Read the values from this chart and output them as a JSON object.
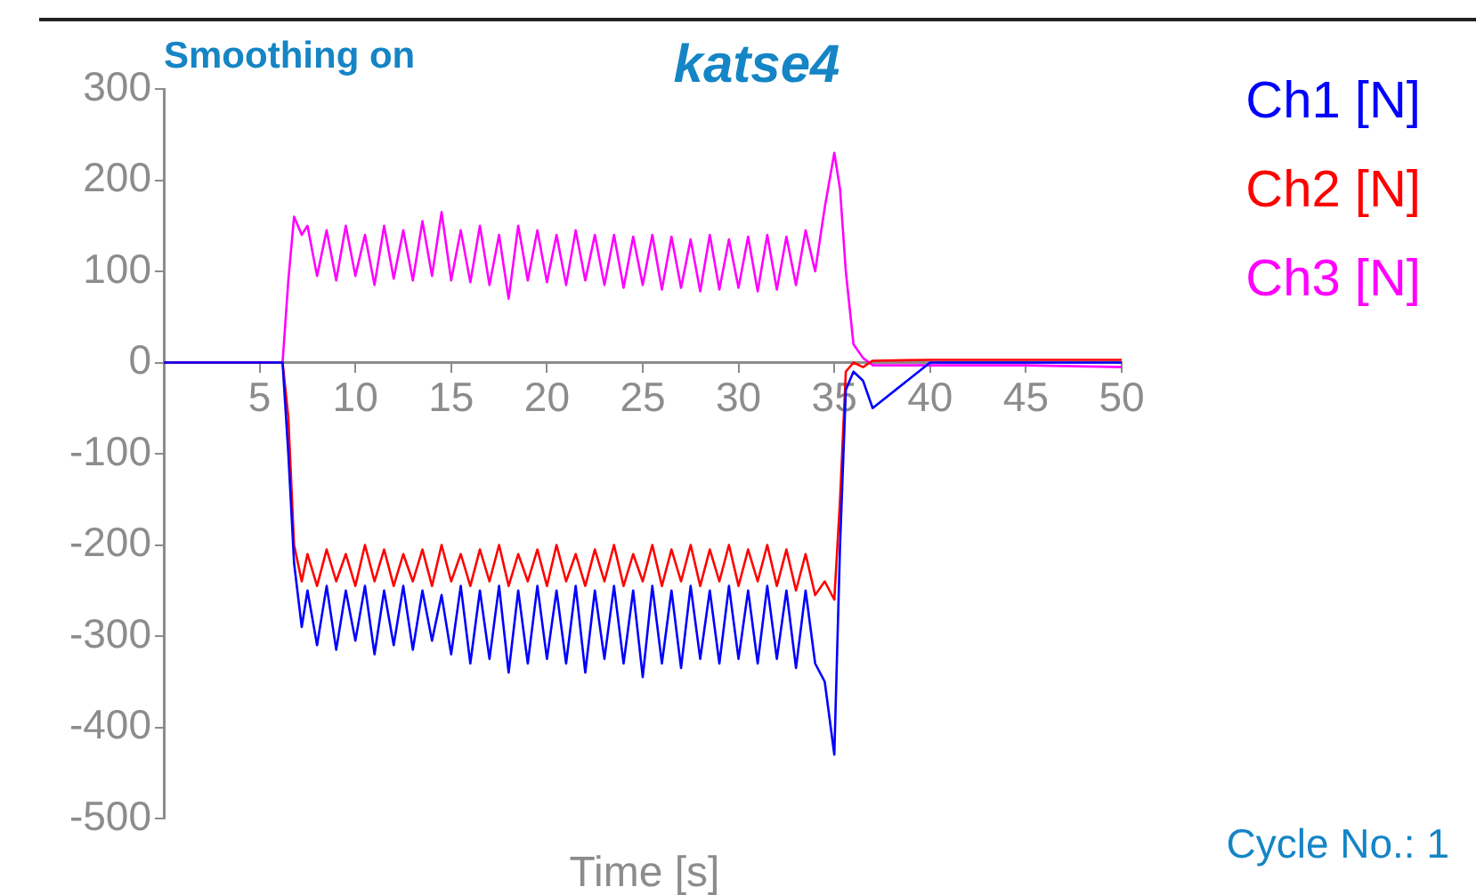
{
  "chart_data": {
    "type": "line",
    "title": "katse4",
    "xlabel": "Time [s]",
    "annotations": [
      "Smoothing on",
      "Cycle No.: 1"
    ],
    "x": [
      0,
      6.2,
      6.5,
      6.8,
      7.2,
      7.5,
      8,
      8.5,
      9,
      9.5,
      10,
      10.5,
      11,
      11.5,
      12,
      12.5,
      13,
      13.5,
      14,
      14.5,
      15,
      15.5,
      16,
      16.5,
      17,
      17.5,
      18,
      18.5,
      19,
      19.5,
      20,
      20.5,
      21,
      21.5,
      22,
      22.5,
      23,
      23.5,
      24,
      24.5,
      25,
      25.5,
      26,
      26.5,
      27,
      27.5,
      28,
      28.5,
      29,
      29.5,
      30,
      30.5,
      31,
      31.5,
      32,
      32.5,
      33,
      33.5,
      34,
      34.5,
      35,
      35.3,
      35.6,
      36,
      36.5,
      37,
      40,
      45,
      50
    ],
    "series": [
      {
        "name": "Ch1 [N]",
        "color": "#0000ff",
        "values": [
          0,
          0,
          -100,
          -220,
          -290,
          -250,
          -310,
          -245,
          -315,
          -250,
          -305,
          -245,
          -320,
          -250,
          -310,
          -245,
          -315,
          -250,
          -305,
          -255,
          -320,
          -245,
          -330,
          -250,
          -325,
          -245,
          -340,
          -250,
          -330,
          -245,
          -325,
          -250,
          -330,
          -245,
          -340,
          -250,
          -325,
          -245,
          -330,
          -250,
          -345,
          -245,
          -330,
          -250,
          -335,
          -245,
          -325,
          -250,
          -330,
          -245,
          -325,
          -250,
          -330,
          -245,
          -325,
          -250,
          -335,
          -250,
          -330,
          -350,
          -430,
          -200,
          -30,
          -10,
          -20,
          -50,
          0,
          0,
          0
        ]
      },
      {
        "name": "Ch2 [N]",
        "color": "#ff0000",
        "values": [
          0,
          0,
          -60,
          -200,
          -240,
          -210,
          -245,
          -205,
          -240,
          -210,
          -245,
          -200,
          -240,
          -205,
          -245,
          -210,
          -240,
          -205,
          -245,
          -200,
          -240,
          -210,
          -245,
          -205,
          -240,
          -200,
          -245,
          -210,
          -240,
          -205,
          -245,
          -200,
          -240,
          -210,
          -245,
          -205,
          -240,
          -200,
          -245,
          -210,
          -240,
          -200,
          -245,
          -205,
          -240,
          -200,
          -245,
          -205,
          -240,
          -200,
          -245,
          -205,
          -240,
          -200,
          -245,
          -205,
          -250,
          -210,
          -255,
          -240,
          -260,
          -150,
          -10,
          0,
          -5,
          2,
          3,
          3,
          3
        ]
      },
      {
        "name": "Ch3 [N]",
        "color": "#ff00ff",
        "values": [
          0,
          0,
          90,
          160,
          140,
          150,
          95,
          145,
          90,
          150,
          95,
          140,
          85,
          150,
          92,
          145,
          90,
          155,
          95,
          165,
          90,
          145,
          88,
          150,
          85,
          140,
          70,
          150,
          90,
          145,
          88,
          140,
          85,
          145,
          90,
          140,
          85,
          140,
          82,
          138,
          85,
          140,
          80,
          138,
          82,
          135,
          78,
          140,
          80,
          135,
          82,
          138,
          78,
          140,
          80,
          138,
          85,
          145,
          100,
          170,
          230,
          190,
          100,
          20,
          5,
          -3,
          -3,
          -3,
          -5
        ]
      }
    ],
    "xlim": [
      0,
      50
    ],
    "xticks": [
      5,
      10,
      15,
      20,
      25,
      30,
      35,
      40,
      45,
      50
    ],
    "ylim": [
      -500,
      300
    ],
    "yticks": [
      -500,
      -400,
      -300,
      -200,
      -100,
      0,
      100,
      200,
      300
    ],
    "grid": false,
    "legend": "top right",
    "marker": "none",
    "line_style": "solid"
  }
}
